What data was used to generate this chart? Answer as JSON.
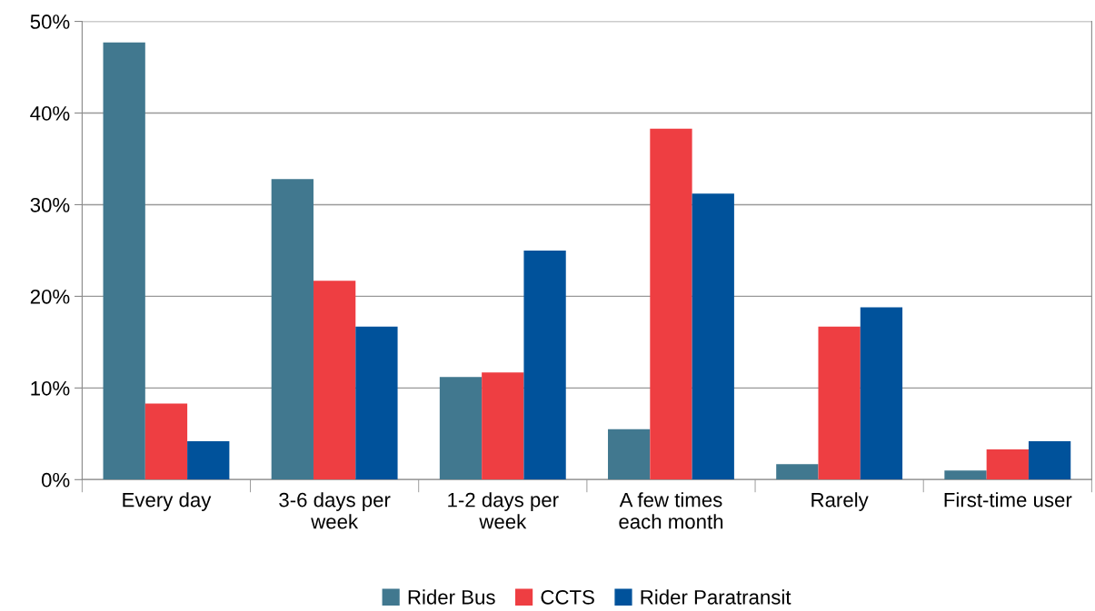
{
  "chart_data": {
    "type": "bar",
    "categories": [
      "Every day",
      "3-6 days per\nweek",
      "1-2 days per\nweek",
      "A few times\neach month",
      "Rarely",
      "First-time user"
    ],
    "series": [
      {
        "name": "Rider Bus",
        "color": "#41788f",
        "values": [
          47.7,
          32.8,
          11.2,
          5.5,
          1.7,
          1.0
        ]
      },
      {
        "name": "CCTS",
        "color": "#ee3e42",
        "values": [
          8.3,
          21.7,
          11.7,
          38.3,
          16.7,
          3.3
        ]
      },
      {
        "name": "Rider Paratransit",
        "color": "#00529b",
        "values": [
          4.2,
          16.7,
          25.0,
          31.2,
          18.8,
          4.2
        ]
      }
    ],
    "ylim": [
      0,
      50
    ],
    "yticks": [
      {
        "value": 0,
        "label": "0%"
      },
      {
        "value": 10,
        "label": "10%"
      },
      {
        "value": 20,
        "label": "20%"
      },
      {
        "value": 30,
        "label": "30%"
      },
      {
        "value": 40,
        "label": "40%"
      },
      {
        "value": 50,
        "label": "50%"
      }
    ],
    "grid": "y",
    "legend": "bottom"
  }
}
